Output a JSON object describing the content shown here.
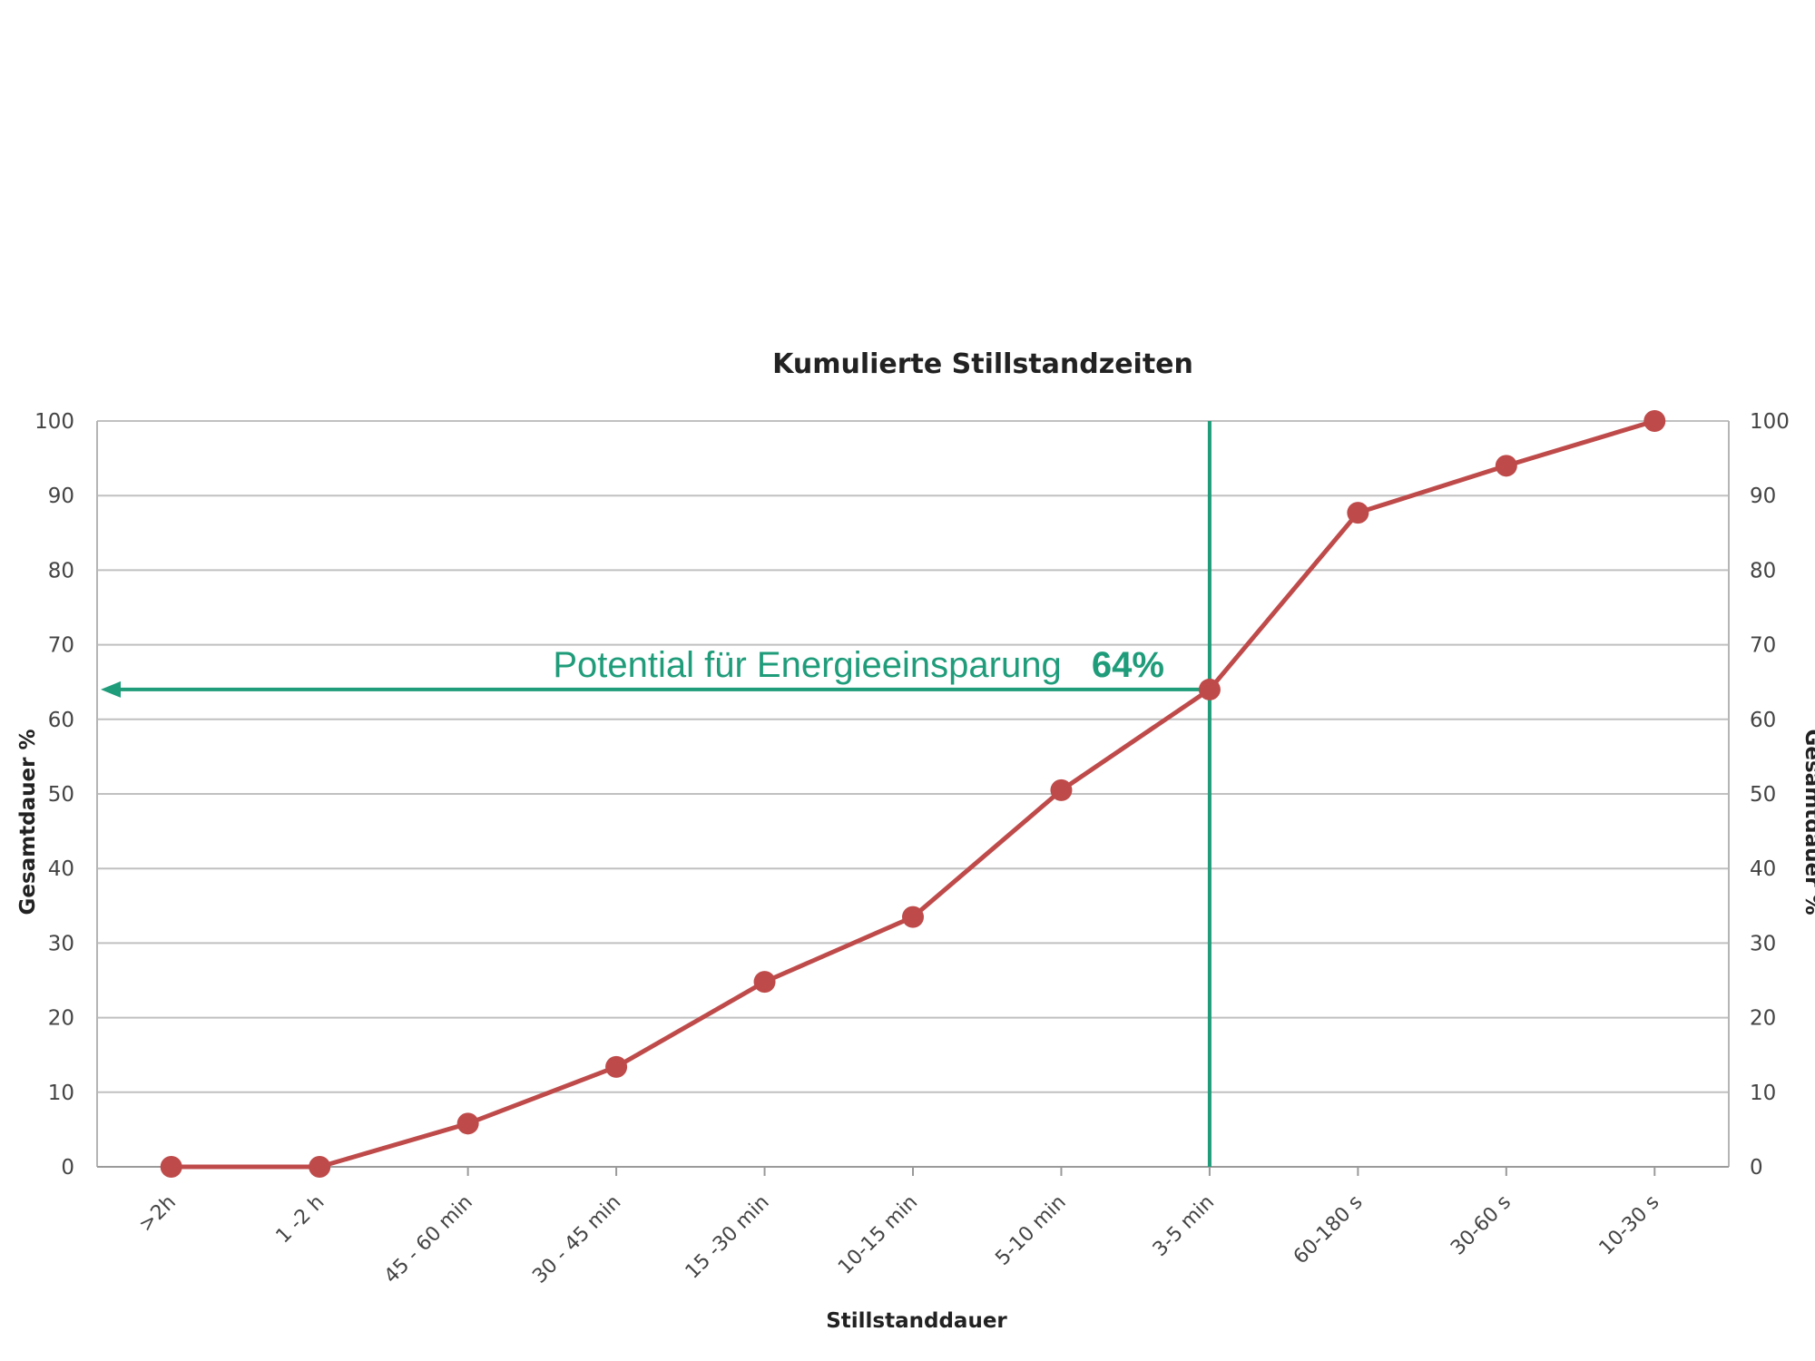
{
  "chart_data": {
    "type": "line",
    "title": "Kumulierte Stillstandzeiten",
    "xlabel": "Stillstanddauer",
    "ylabel": "Gesamtdauer %",
    "ylabel_right": "Gesamtdauer %",
    "ylim": [
      0,
      100
    ],
    "yticks": [
      0,
      10,
      20,
      30,
      40,
      50,
      60,
      70,
      80,
      90,
      100
    ],
    "categories": [
      ">2h",
      "1 -2 h",
      "45 - 60 min",
      "30 - 45 min",
      "15 -30 min",
      "10-15 min",
      "5-10 min",
      "3-5 min",
      "60-180 s",
      "30-60 s",
      "10-30 s"
    ],
    "series": [
      {
        "values": [
          0,
          0,
          5.8,
          13.4,
          24.8,
          33.5,
          50.5,
          64,
          87.7,
          94,
          100
        ]
      }
    ],
    "grid": true,
    "annotation": {
      "text": "Potential  für Energieeinsparung",
      "value_text": "64%",
      "y": 64,
      "category": "3-5 min"
    },
    "colors": {
      "series": "#bf4a4a",
      "annotation": "#1f9c7a",
      "grid": "#c0c0c0"
    }
  }
}
